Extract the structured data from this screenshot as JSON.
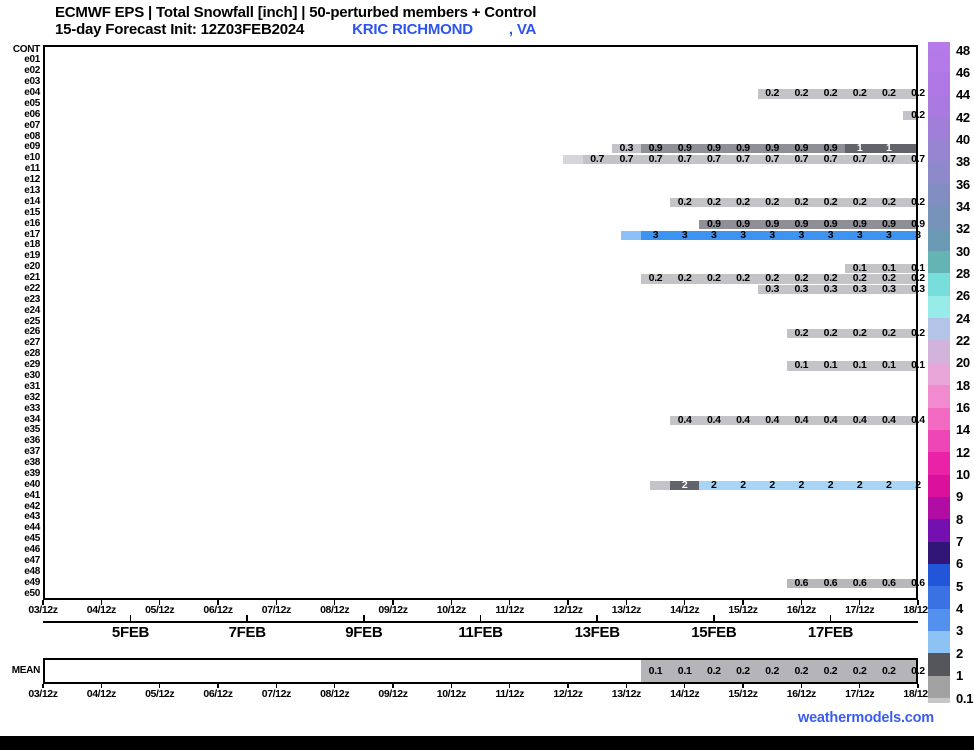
{
  "header": {
    "title": "ECMWF EPS | Total Snowfall [inch] | 50-perturbed members + Control",
    "init_line": "15-day Forecast Init: 12Z03FEB2024",
    "station": "KRIC RICHMOND",
    "station_state": ", VA",
    "accent_blue": "#2b55ee"
  },
  "footer": {
    "site": "weathermodels.com",
    "color": "#3a5cf0"
  },
  "mean_panel": {
    "label": "MEAN"
  },
  "chart_data": {
    "type": "heatmap",
    "title": "ECMWF EPS | Total Snowfall [inch] | 50-perturbed members + Control",
    "subtitle": "15-day Forecast Init: 12Z03FEB2024 KRIC RICHMOND , VA",
    "unit": "inch",
    "x_start": "03FEB 12z",
    "x_step_hours": 12,
    "x_tick_labels": [
      "03/12z",
      "04/12z",
      "05/12z",
      "06/12z",
      "07/12z",
      "08/12z",
      "09/12z",
      "10/12z",
      "11/12z",
      "12/12z",
      "13/12z",
      "14/12z",
      "15/12z",
      "16/12z",
      "17/12z",
      "18/12z"
    ],
    "date_tick_labels": [
      "5FEB",
      "7FEB",
      "9FEB",
      "11FEB",
      "13FEB",
      "15FEB",
      "17FEB"
    ],
    "y_labels": [
      "CONT",
      "e01",
      "e02",
      "e03",
      "e04",
      "e05",
      "e06",
      "e07",
      "e08",
      "e09",
      "e10",
      "e11",
      "e12",
      "e13",
      "e14",
      "e15",
      "e16",
      "e17",
      "e18",
      "e19",
      "e20",
      "e21",
      "e22",
      "e23",
      "e24",
      "e25",
      "e26",
      "e27",
      "e28",
      "e29",
      "e30",
      "e31",
      "e32",
      "e33",
      "e34",
      "e35",
      "e36",
      "e37",
      "e38",
      "e39",
      "e40",
      "e41",
      "e42",
      "e43",
      "e44",
      "e45",
      "e46",
      "e47",
      "e48",
      "e49",
      "e50"
    ],
    "styles": {
      "g0": {
        "bg": "#d6d6da",
        "fg": "#000000"
      },
      "g1": {
        "bg": "#c4c4c8",
        "fg": "#000000"
      },
      "g1b": {
        "bg": "#b8b8bc",
        "fg": "#000000"
      },
      "g2": {
        "bg": "#8f8f97",
        "fg": "#000000"
      },
      "g3": {
        "bg": "#63636b",
        "fg": "#ffffff"
      },
      "b0": {
        "bg": "#8cc0f8",
        "fg": "#000000"
      },
      "b1": {
        "bg": "#3d93f2",
        "fg": "#000000"
      },
      "b2": {
        "bg": "#a8d5f6",
        "fg": "#000000"
      },
      "gm": {
        "bg": "#b5b5b9",
        "fg": "#000000"
      }
    },
    "bars": [
      {
        "member": "e04",
        "start": 25,
        "style": "g1",
        "values": [
          0.2,
          0.2,
          0.2,
          0.2,
          0.2,
          0.2
        ]
      },
      {
        "member": "e06",
        "start": 30,
        "style": "g1",
        "values": [
          0.2
        ]
      },
      {
        "member": "e09",
        "start": 20,
        "styles": [
          "g1",
          "g2",
          "g2",
          "g2",
          "g2",
          "g2",
          "g2",
          "g2",
          "g3",
          "g3",
          "g3"
        ],
        "values": [
          0.3,
          0.9,
          0.9,
          0.9,
          0.9,
          0.9,
          0.9,
          0.9,
          1,
          1,
          1
        ]
      },
      {
        "member": "e10",
        "start": 19,
        "lead": "g0",
        "style": "g1",
        "values": [
          0.7,
          0.7,
          0.7,
          0.7,
          0.7,
          0.7,
          0.7,
          0.7,
          0.7,
          0.7,
          0.7,
          0.7
        ]
      },
      {
        "member": "e14",
        "start": 22,
        "style": "g1",
        "values": [
          0.2,
          0.2,
          0.2,
          0.2,
          0.2,
          0.2,
          0.2,
          0.2,
          0.2
        ]
      },
      {
        "member": "e16",
        "start": 23,
        "style": "g2",
        "values": [
          0.9,
          0.9,
          0.9,
          0.9,
          0.9,
          0.9,
          0.9,
          0.9
        ]
      },
      {
        "member": "e17",
        "start": 21,
        "lead": "b0",
        "style": "b1",
        "values": [
          3,
          3,
          3,
          3,
          3,
          3,
          3,
          3,
          3,
          3
        ]
      },
      {
        "member": "e20",
        "start": 28,
        "style": "g1",
        "values": [
          0.1,
          0.1,
          0.1
        ]
      },
      {
        "member": "e21",
        "start": 21,
        "style": "g1",
        "values": [
          0.2,
          0.2,
          0.2,
          0.2,
          0.2,
          0.2,
          0.2,
          0.2,
          0.2,
          0.2
        ]
      },
      {
        "member": "e22",
        "start": 25,
        "style": "g1",
        "values": [
          0.3,
          0.3,
          0.3,
          0.3,
          0.3,
          0.3
        ]
      },
      {
        "member": "e26",
        "start": 26,
        "style": "g1",
        "values": [
          0.2,
          0.2,
          0.2,
          0.2,
          0.2
        ]
      },
      {
        "member": "e29",
        "start": 26,
        "style": "g1",
        "values": [
          0.1,
          0.1,
          0.1,
          0.1,
          0.1
        ]
      },
      {
        "member": "e34",
        "start": 22,
        "style": "g1",
        "values": [
          0.4,
          0.4,
          0.4,
          0.4,
          0.4,
          0.4,
          0.4,
          0.4,
          0.4
        ]
      },
      {
        "member": "e40",
        "start": 22,
        "lead": "g1",
        "styles": [
          "g3",
          "b2",
          "b2",
          "b2",
          "b2",
          "b2",
          "b2",
          "b2",
          "b2"
        ],
        "values": [
          2,
          2,
          2,
          2,
          2,
          2,
          2,
          2,
          2
        ]
      },
      {
        "member": "e49",
        "start": 26,
        "style": "g1b",
        "values": [
          0.6,
          0.6,
          0.6,
          0.6,
          0.6
        ]
      }
    ],
    "mean_bar": {
      "start": 21,
      "style": "gm",
      "values": [
        0.1,
        0.1,
        0.2,
        0.2,
        0.2,
        0.2,
        0.2,
        0.2,
        0.2,
        0.2
      ]
    },
    "colorbar": {
      "labels": [
        "48",
        "46",
        "44",
        "42",
        "40",
        "38",
        "36",
        "34",
        "32",
        "30",
        "28",
        "26",
        "24",
        "22",
        "20",
        "18",
        "16",
        "14",
        "12",
        "10",
        "9",
        "8",
        "7",
        "6",
        "5",
        "4",
        "3",
        "2",
        "1",
        "0.1"
      ],
      "segment_colors": [
        "#b47ae8",
        "#b078e4",
        "#aa7ae0",
        "#a07fd8",
        "#9785d2",
        "#8d89ca",
        "#828dc2",
        "#7793ba",
        "#6b9ab4",
        "#65b4b4",
        "#78dedb",
        "#97ece9",
        "#b3c4e8",
        "#d2b3dc",
        "#e9a6d8",
        "#f18ace",
        "#f26ac2",
        "#ee46b4",
        "#e922a8",
        "#db109c",
        "#b10da4",
        "#7510b0",
        "#311678",
        "#2255d8",
        "#3a72e4",
        "#5490ee",
        "#8cc2f4",
        "#55555c",
        "#a2a2a2"
      ],
      "cap_top": "#b57ce9",
      "cap_bottom": "#c6c6c6"
    }
  }
}
